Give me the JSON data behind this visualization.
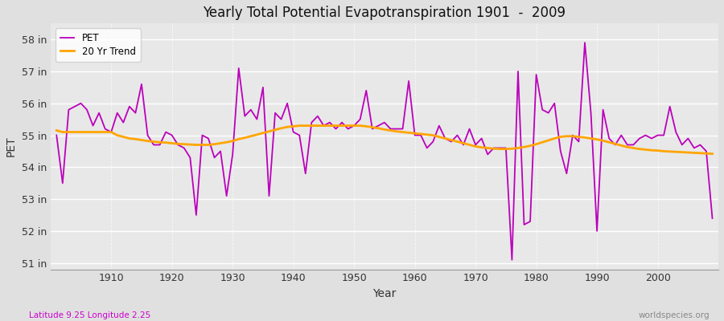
{
  "title": "Yearly Total Potential Evapotranspiration 1901  -  2009",
  "xlabel": "Year",
  "ylabel": "PET",
  "subtitle_left": "Latitude 9.25 Longitude 2.25",
  "subtitle_right": "worldspecies.org",
  "pet_color": "#BB00BB",
  "trend_color": "#FFA500",
  "bg_color": "#E0E0E0",
  "plot_bg_color": "#E8E8E8",
  "ylim": [
    50.8,
    58.5
  ],
  "yticks": [
    51,
    52,
    53,
    54,
    55,
    56,
    57,
    58
  ],
  "ytick_labels": [
    "51 in",
    "52 in",
    "53 in",
    "54 in",
    "55 in",
    "56 in",
    "57 in",
    "58 in"
  ],
  "xticks": [
    1910,
    1920,
    1930,
    1940,
    1950,
    1960,
    1970,
    1980,
    1990,
    2000
  ],
  "xlim": [
    1900,
    2010
  ],
  "years": [
    1901,
    1902,
    1903,
    1904,
    1905,
    1906,
    1907,
    1908,
    1909,
    1910,
    1911,
    1912,
    1913,
    1914,
    1915,
    1916,
    1917,
    1918,
    1919,
    1920,
    1921,
    1922,
    1923,
    1924,
    1925,
    1926,
    1927,
    1928,
    1929,
    1930,
    1931,
    1932,
    1933,
    1934,
    1935,
    1936,
    1937,
    1938,
    1939,
    1940,
    1941,
    1942,
    1943,
    1944,
    1945,
    1946,
    1947,
    1948,
    1949,
    1950,
    1951,
    1952,
    1953,
    1954,
    1955,
    1956,
    1957,
    1958,
    1959,
    1960,
    1961,
    1962,
    1963,
    1964,
    1965,
    1966,
    1967,
    1968,
    1969,
    1970,
    1971,
    1972,
    1973,
    1974,
    1975,
    1976,
    1977,
    1978,
    1979,
    1980,
    1981,
    1982,
    1983,
    1984,
    1985,
    1986,
    1987,
    1988,
    1989,
    1990,
    1991,
    1992,
    1993,
    1994,
    1995,
    1996,
    1997,
    1998,
    1999,
    2000,
    2001,
    2002,
    2003,
    2004,
    2005,
    2006,
    2007,
    2008,
    2009
  ],
  "pet_values": [
    55.0,
    53.5,
    55.8,
    55.9,
    56.0,
    55.8,
    55.3,
    55.7,
    55.2,
    55.1,
    55.7,
    55.4,
    55.9,
    55.7,
    56.6,
    55.0,
    54.7,
    54.7,
    55.1,
    55.0,
    54.7,
    54.6,
    54.3,
    52.5,
    55.0,
    54.9,
    54.3,
    54.5,
    53.1,
    54.4,
    57.1,
    55.6,
    55.8,
    55.5,
    56.5,
    53.1,
    55.7,
    55.5,
    56.0,
    55.1,
    55.0,
    53.8,
    55.4,
    55.6,
    55.3,
    55.4,
    55.2,
    55.4,
    55.2,
    55.3,
    55.5,
    56.4,
    55.2,
    55.3,
    55.4,
    55.2,
    55.2,
    55.2,
    56.7,
    55.0,
    55.0,
    54.6,
    54.8,
    55.3,
    54.9,
    54.8,
    55.0,
    54.7,
    55.2,
    54.7,
    54.9,
    54.4,
    54.6,
    54.6,
    54.6,
    51.1,
    57.0,
    52.2,
    52.3,
    56.9,
    55.8,
    55.7,
    56.0,
    54.5,
    53.8,
    55.0,
    54.8,
    57.9,
    55.7,
    52.0,
    55.8,
    54.9,
    54.7,
    55.0,
    54.7,
    54.7,
    54.9,
    55.0,
    54.9,
    55.0,
    55.0,
    55.9,
    55.1,
    54.7,
    54.9,
    54.6,
    54.7,
    54.5,
    52.4
  ],
  "trend_values_x": [
    1901,
    1902,
    1903,
    1904,
    1905,
    1906,
    1907,
    1908,
    1909,
    1910,
    1911,
    1912,
    1913,
    1914,
    1915,
    1916,
    1917,
    1918,
    1919,
    1920,
    1921,
    1922,
    1923,
    1924,
    1925,
    1926,
    1927,
    1928,
    1929,
    1930,
    1931,
    1932,
    1933,
    1934,
    1935,
    1936,
    1937,
    1938,
    1939,
    1940,
    1941,
    1942,
    1943,
    1944,
    1945,
    1946,
    1947,
    1948,
    1949,
    1950,
    1951,
    1952,
    1953,
    1954,
    1955,
    1956,
    1957,
    1958,
    1959,
    1960,
    1961,
    1962,
    1963,
    1964,
    1965,
    1966,
    1967,
    1968,
    1969,
    1970,
    1971,
    1972,
    1973,
    1974,
    1975,
    1976,
    1977,
    1978,
    1979,
    1980,
    1981,
    1982,
    1983,
    1984,
    1985,
    1986,
    1987,
    1988,
    1989,
    1990,
    1991,
    1992,
    1993,
    1994,
    1995,
    1996,
    1997,
    1998,
    1999,
    2000,
    2001,
    2002,
    2003,
    2004,
    2005,
    2006,
    2007,
    2008,
    2009
  ],
  "trend_values": [
    55.15,
    55.1,
    55.1,
    55.1,
    55.1,
    55.1,
    55.1,
    55.1,
    55.1,
    55.1,
    55.0,
    54.95,
    54.9,
    54.88,
    54.85,
    54.82,
    54.8,
    54.78,
    54.77,
    54.75,
    54.73,
    54.72,
    54.71,
    54.7,
    54.7,
    54.7,
    54.72,
    54.75,
    54.78,
    54.82,
    54.88,
    54.92,
    54.97,
    55.02,
    55.07,
    55.12,
    55.17,
    55.22,
    55.26,
    55.28,
    55.3,
    55.3,
    55.3,
    55.3,
    55.3,
    55.3,
    55.3,
    55.3,
    55.3,
    55.3,
    55.3,
    55.28,
    55.25,
    55.22,
    55.18,
    55.15,
    55.12,
    55.1,
    55.08,
    55.06,
    55.04,
    55.02,
    55.0,
    54.95,
    54.9,
    54.85,
    54.8,
    54.75,
    54.7,
    54.65,
    54.62,
    54.6,
    54.58,
    54.57,
    54.57,
    54.58,
    54.6,
    54.63,
    54.67,
    54.72,
    54.78,
    54.84,
    54.9,
    54.95,
    54.97,
    54.97,
    54.95,
    54.93,
    54.9,
    54.87,
    54.83,
    54.78,
    54.73,
    54.68,
    54.63,
    54.6,
    54.57,
    54.55,
    54.53,
    54.52,
    54.5,
    54.49,
    54.48,
    54.47,
    54.46,
    54.45,
    54.44,
    54.43,
    54.42
  ]
}
